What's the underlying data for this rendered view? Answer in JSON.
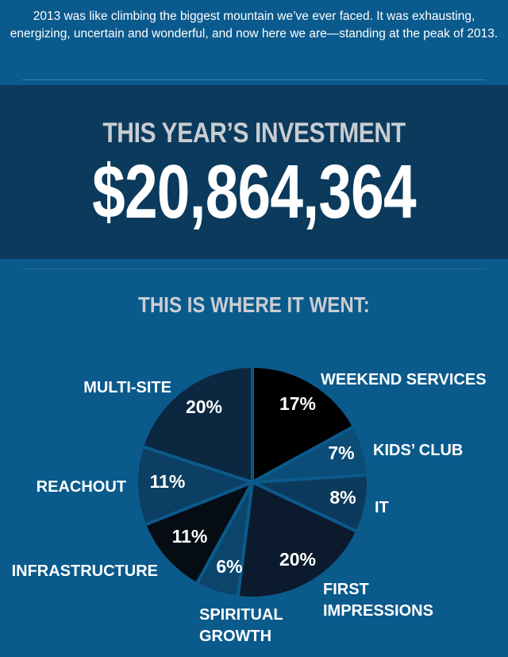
{
  "intro": {
    "text": "2013 was like climbing the biggest mountain we’ve ever faced. It was exhausting, energizing, uncertain and wonderful, and now here we are—standing at the peak of 2013."
  },
  "investment": {
    "label": "THIS YEAR’S INVESTMENT",
    "amount": "$20,864,364"
  },
  "breakdown_heading": "THIS IS WHERE IT WENT:",
  "colors": {
    "background": "#0b5a8c",
    "band": "#0b3a5c",
    "slice_separator": "#0b5a8c"
  },
  "chart_data": {
    "type": "pie",
    "title": "THIS IS WHERE IT WENT:",
    "slices": [
      {
        "label": "WEEKEND SERVICES",
        "value": 17,
        "value_label": "17%",
        "color": "#000000"
      },
      {
        "label": "KIDS’ CLUB",
        "value": 7,
        "value_label": "7%",
        "color": "#0b4d78"
      },
      {
        "label": "IT",
        "value": 8,
        "value_label": "8%",
        "color": "#0c3a5c"
      },
      {
        "label": "FIRST IMPRESSIONS",
        "value": 20,
        "value_label": "20%",
        "color": "#0b1a2c"
      },
      {
        "label": "SPIRITUAL GROWTH",
        "value": 6,
        "value_label": "6%",
        "color": "#0b456c"
      },
      {
        "label": "INFRASTRUCTURE",
        "value": 11,
        "value_label": "11%",
        "color": "#060c14"
      },
      {
        "label": "REACHOUT",
        "value": 11,
        "value_label": "11%",
        "color": "#0c3f63"
      },
      {
        "label": "MULTI-SITE",
        "value": 20,
        "value_label": "20%",
        "color": "#0c2740"
      }
    ]
  }
}
